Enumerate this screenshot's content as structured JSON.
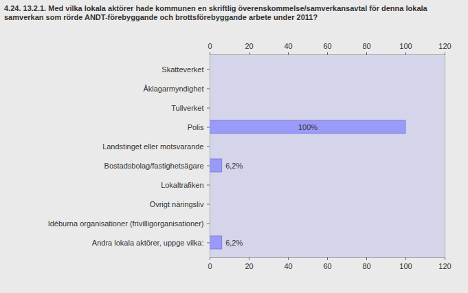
{
  "chart_data": {
    "type": "bar",
    "orientation": "horizontal",
    "title": "4.24. 13.2.1. Med vilka lokala aktörer hade kommunen en skriftlig överenskommelse/samverkansavtal för denna lokala samverkan som rörde ANDT-förebyggande och brottsförebyggande arbete under 2011?",
    "categories": [
      "Skatteverket",
      "Åklagarmyndighet",
      "Tullverket",
      "Polis",
      "Landstinget eller motsvarande",
      "Bostadsbolag/fastighetsägare",
      "Lokaltrafiken",
      "Övrigt näringsliv",
      "Idéburna organisationer (frivilligorganisationer)",
      "Andra lokala aktörer, uppge vilka:"
    ],
    "values": [
      0,
      0,
      0,
      100,
      0,
      6.2,
      0,
      0,
      0,
      6.2
    ],
    "value_labels": [
      null,
      null,
      null,
      "100%",
      null,
      "6,2%",
      null,
      null,
      null,
      "6,2%"
    ],
    "data_labels": true,
    "color": "#9a9af8",
    "xlim": [
      0,
      120
    ],
    "xticks": [
      0,
      20,
      40,
      60,
      80,
      100,
      120
    ],
    "grid": false
  }
}
